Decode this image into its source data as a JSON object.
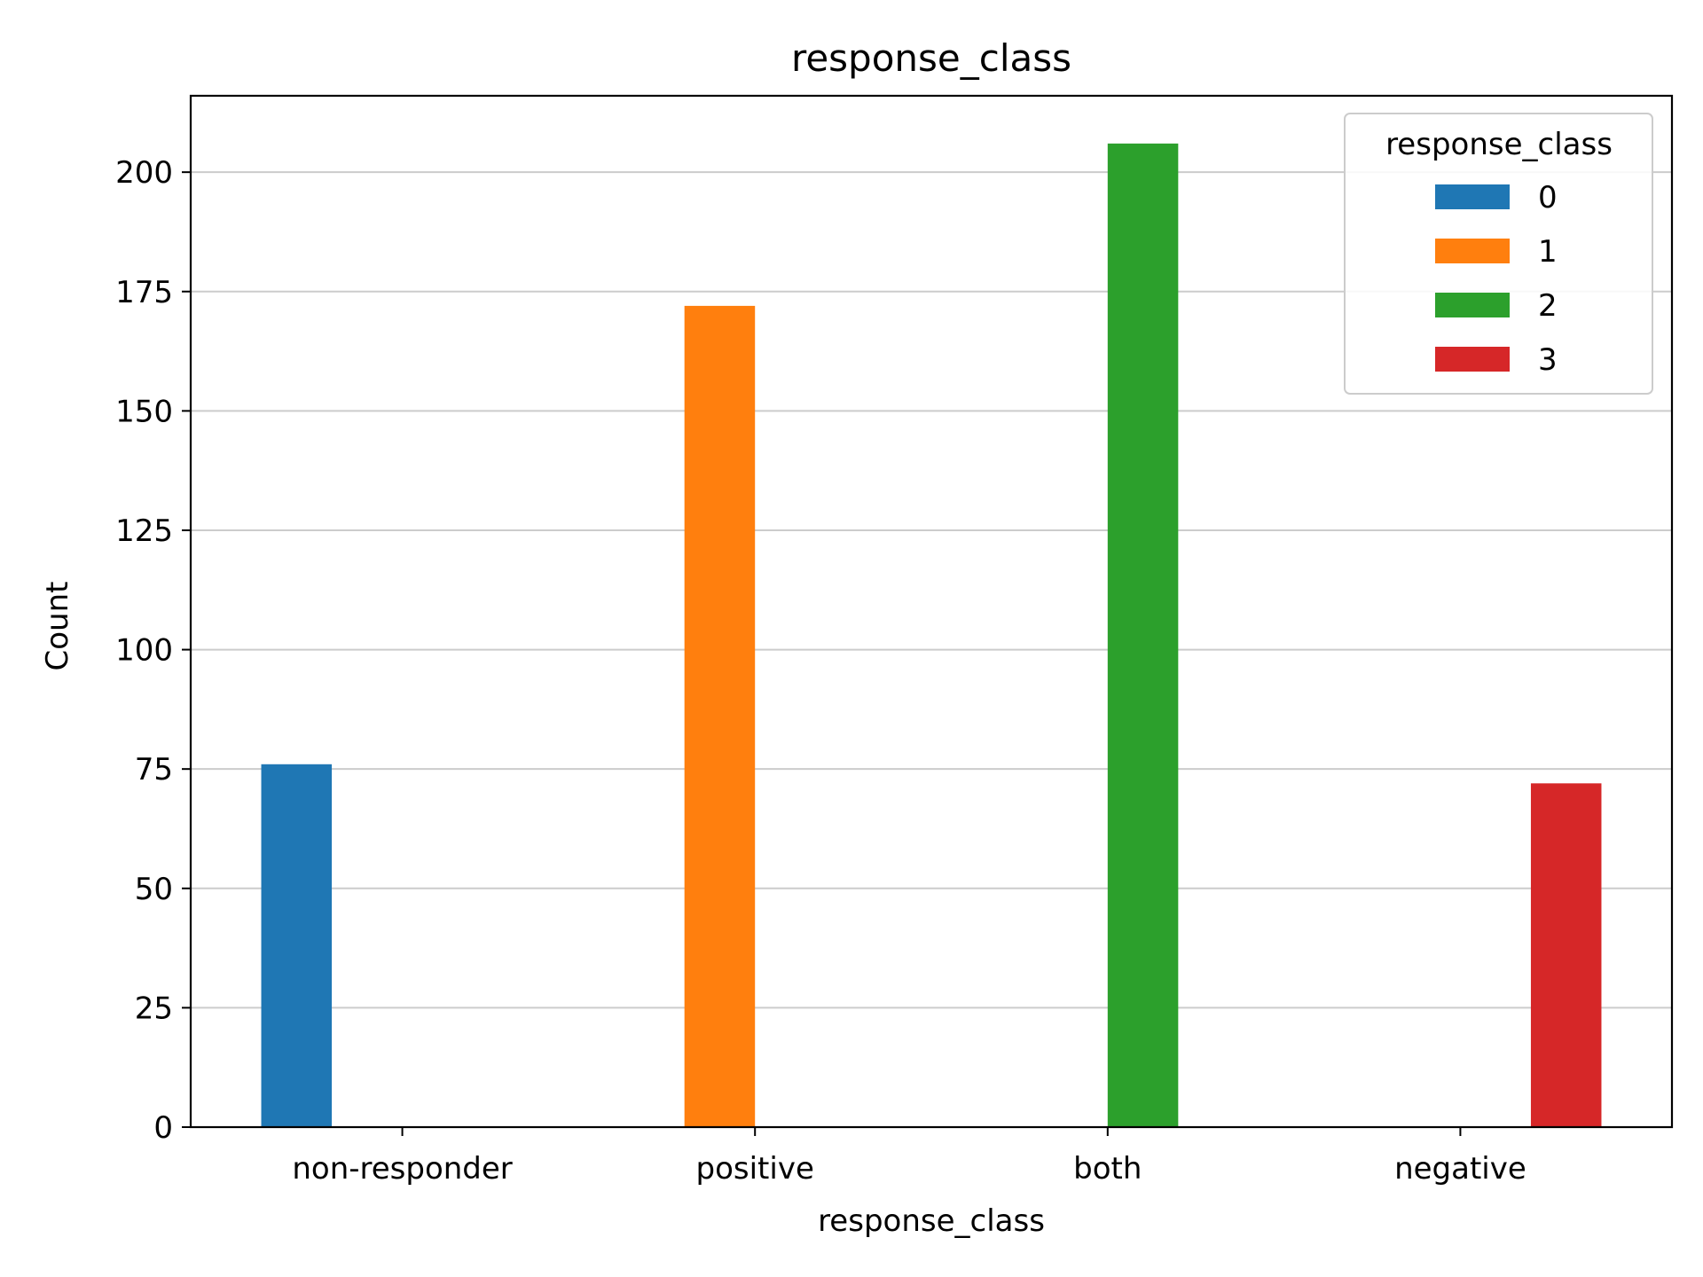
{
  "chart_data": {
    "type": "bar",
    "title": "response_class",
    "xlabel": "response_class",
    "ylabel": "Count",
    "categories": [
      "non-responder",
      "positive",
      "both",
      "negative"
    ],
    "ylim": [
      0,
      216
    ],
    "yticks": [
      0,
      25,
      50,
      75,
      100,
      125,
      150,
      175,
      200
    ],
    "grid": "y",
    "legend": {
      "title": "response_class",
      "placement": "top-right",
      "entries": [
        "0",
        "1",
        "2",
        "3"
      ]
    },
    "series": [
      {
        "name": "0",
        "color": "#1f77b4",
        "values": [
          76,
          0,
          0,
          0
        ]
      },
      {
        "name": "1",
        "color": "#ff7f0e",
        "values": [
          0,
          172,
          0,
          0
        ]
      },
      {
        "name": "2",
        "color": "#2ca02c",
        "values": [
          0,
          0,
          206,
          0
        ]
      },
      {
        "name": "3",
        "color": "#d62728",
        "values": [
          0,
          0,
          0,
          72
        ]
      }
    ]
  }
}
